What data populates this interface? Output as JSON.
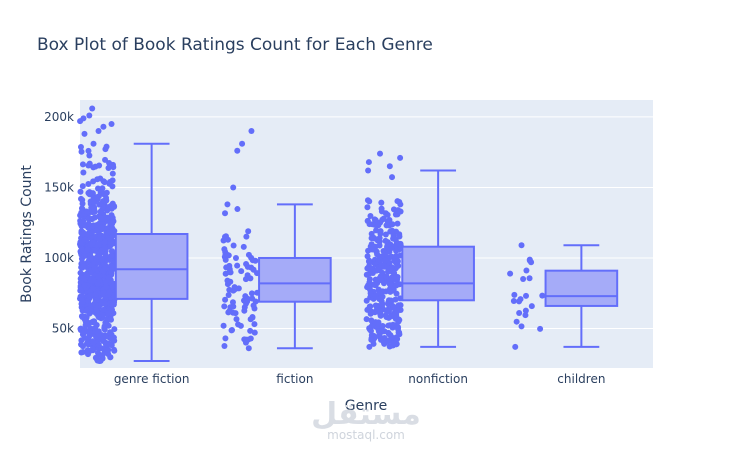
{
  "chart_data": {
    "type": "box",
    "title": "Box Plot of Book Ratings Count for Each Genre",
    "xlabel": "Genre",
    "ylabel": "Book Ratings Count",
    "ylim": [
      22000,
      212000
    ],
    "yticks": [
      50000,
      100000,
      150000,
      200000
    ],
    "ytick_labels": [
      "50k",
      "100k",
      "150k",
      "200k"
    ],
    "grid": true,
    "boxpoints": "all",
    "color": "#636efa",
    "box_fill": "#a5abf8",
    "plot_bg": "#e5ecf6",
    "categories": [
      "genre fiction",
      "fiction",
      "nonfiction",
      "children"
    ],
    "boxes": [
      {
        "name": "genre fiction",
        "min": 27000,
        "q1": 71000,
        "median": 92000,
        "q3": 117000,
        "max": 181000,
        "outliers": [
          188000,
          190000,
          193000,
          195000,
          197000,
          199000,
          201000,
          206000
        ],
        "n": 700,
        "seed": 11
      },
      {
        "name": "fiction",
        "min": 36000,
        "q1": 69000,
        "median": 82000,
        "q3": 100000,
        "max": 138000,
        "outliers": [
          150000,
          176000,
          181000,
          190000
        ],
        "n": 90,
        "seed": 23
      },
      {
        "name": "nonfiction",
        "min": 37000,
        "q1": 70000,
        "median": 82000,
        "q3": 108000,
        "max": 162000,
        "outliers": [
          165000,
          168000,
          171000,
          174000
        ],
        "n": 320,
        "seed": 37
      },
      {
        "name": "children",
        "min": 37000,
        "q1": 66000,
        "median": 73000,
        "q3": 91000,
        "max": 109000,
        "outliers": [],
        "n": 20,
        "seed": 51
      }
    ]
  },
  "watermark": {
    "main": "مستقل",
    "sub": "mostaql.com"
  }
}
